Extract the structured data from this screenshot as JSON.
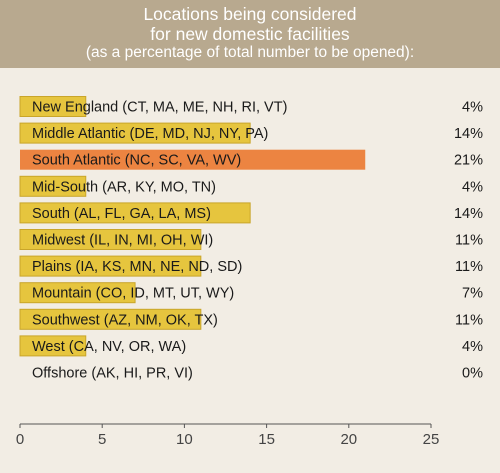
{
  "chart_data": {
    "type": "bar",
    "orientation": "horizontal",
    "title_lines": [
      "Locations being considered",
      "for new domestic facilities",
      "(as a percentage of total number to be opened):"
    ],
    "categories": [
      "New England (CT, MA, ME, NH, RI, VT)",
      "Middle Atlantic (DE, MD, NJ, NY, PA)",
      "South Atlantic (NC, SC, VA, WV)",
      "Mid-South (AR, KY, MO, TN)",
      "South (AL, FL, GA, LA, MS)",
      "Midwest (IL, IN, MI, OH, WI)",
      "Plains (IA, KS, MN, NE, ND, SD)",
      "Mountain (CO, ID, MT, UT, WY)",
      "Southwest (AZ, NM, OK, TX)",
      "West (CA, NV, OR, WA)",
      "Offshore (AK, HI, PR, VI)"
    ],
    "values": [
      4,
      14,
      21,
      4,
      14,
      11,
      11,
      7,
      11,
      4,
      0
    ],
    "value_labels": [
      "4%",
      "14%",
      "21%",
      "4%",
      "14%",
      "11%",
      "11%",
      "7%",
      "11%",
      "4%",
      "0%"
    ],
    "highlight_index": 2,
    "xlim": [
      0,
      25
    ],
    "xticks": [
      0,
      5,
      10,
      15,
      20,
      25
    ],
    "grid": false,
    "colors": {
      "bar": "#e6c53e",
      "bar_border": "#c9a52a",
      "highlight": "#ec8441",
      "header_bg": "#b8a98f",
      "background": "#f2ede4",
      "axis": "#555555"
    }
  }
}
